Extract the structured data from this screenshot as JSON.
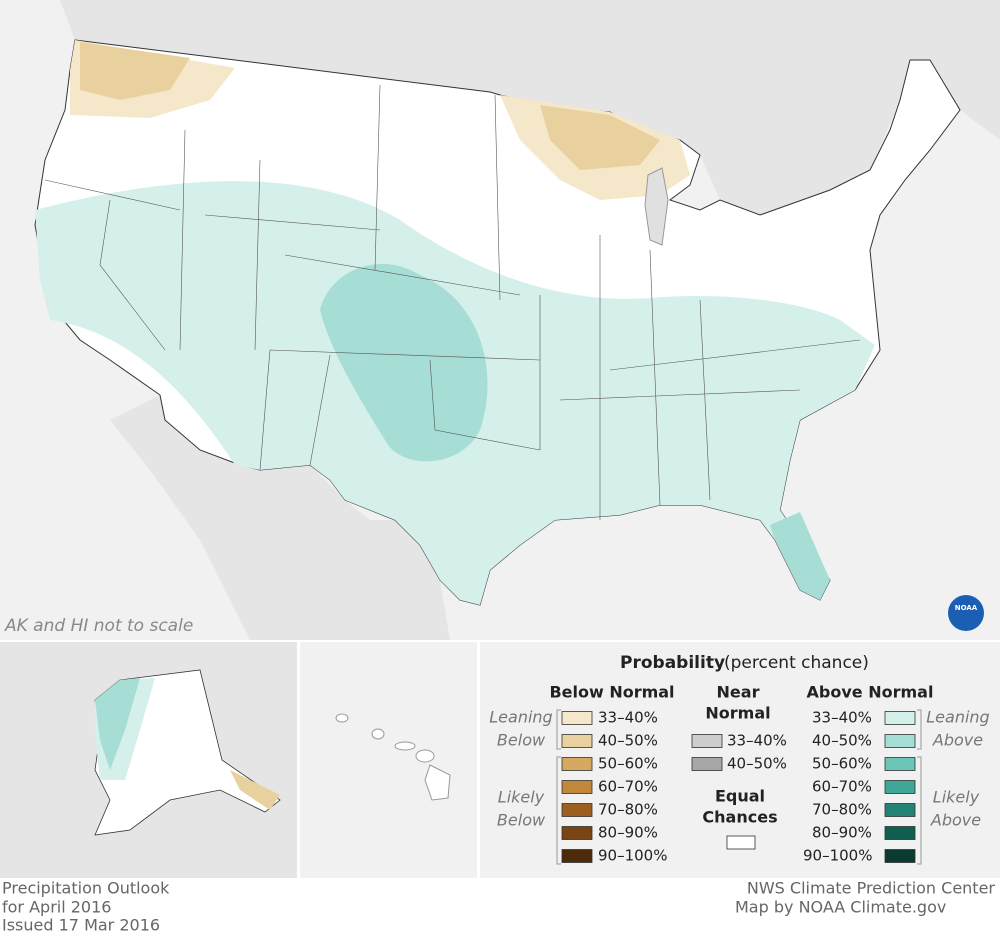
{
  "map_note": "AK and HI not to scale",
  "logo": "NOAA",
  "legend": {
    "title": "Probability",
    "title_note": "(percent chance)",
    "below": {
      "heading": [
        "Below Normal"
      ],
      "entries": [
        {
          "label": "33–40%",
          "color": "#f5e7c9"
        },
        {
          "label": "40–50%",
          "color": "#e9d19f"
        },
        {
          "label": "50–60%",
          "color": "#d5aa60"
        },
        {
          "label": "60–70%",
          "color": "#c1873b"
        },
        {
          "label": "70–80%",
          "color": "#9d5f1f"
        },
        {
          "label": "80–90%",
          "color": "#7a4414"
        },
        {
          "label": "90–100%",
          "color": "#4c2a0a"
        }
      ]
    },
    "near": {
      "heading": [
        "Near",
        "Normal"
      ],
      "entries": [
        {
          "label": "33–40%",
          "color": "#cdcdcd"
        },
        {
          "label": "40–50%",
          "color": "#a7a7a7"
        }
      ]
    },
    "equal": {
      "heading": [
        "Equal",
        "Chances"
      ],
      "color": "#ffffff"
    },
    "above": {
      "heading": [
        "Above Normal"
      ],
      "entries": [
        {
          "label": "33–40%",
          "color": "#d5efeb"
        },
        {
          "label": "40–50%",
          "color": "#a6ddd5"
        },
        {
          "label": "50–60%",
          "color": "#6dc5b8"
        },
        {
          "label": "60–70%",
          "color": "#40a797"
        },
        {
          "label": "70–80%",
          "color": "#218373"
        },
        {
          "label": "80–90%",
          "color": "#105e50"
        },
        {
          "label": "90–100%",
          "color": "#0a3a30"
        }
      ]
    },
    "leaning_below": [
      "Leaning",
      "Below"
    ],
    "likely_below": [
      "Likely",
      "Below"
    ],
    "leaning_above": [
      "Leaning",
      "Above"
    ],
    "likely_above": [
      "Likely",
      "Above"
    ]
  },
  "footer_left": [
    "Precipitation Outlook",
    "for April 2016",
    "Issued 17 Mar 2016"
  ],
  "footer_right": [
    "NWS Climate Prediction Center",
    "Map by NOAA Climate.gov"
  ]
}
